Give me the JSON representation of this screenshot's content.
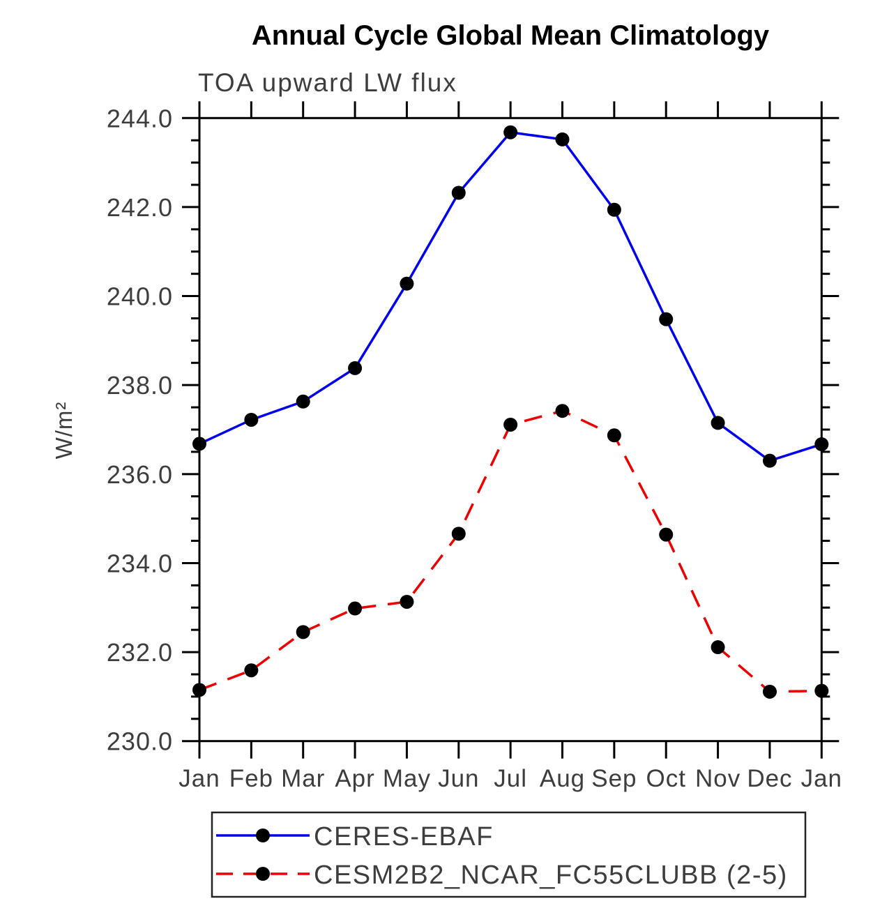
{
  "title": "Annual Cycle Global Mean Climatology",
  "subtitle": "TOA upward LW flux",
  "chart_data": {
    "type": "line",
    "categories": [
      "Jan",
      "Feb",
      "Mar",
      "Apr",
      "May",
      "Jun",
      "Jul",
      "Aug",
      "Sep",
      "Oct",
      "Nov",
      "Dec",
      "Jan"
    ],
    "series": [
      {
        "name": "CERES-EBAF",
        "color": "#0000ee",
        "line_style": "solid",
        "marker": "filled-circle",
        "marker_color": "#000000",
        "values": [
          236.68,
          237.22,
          237.63,
          238.38,
          240.28,
          242.32,
          243.68,
          243.52,
          241.94,
          239.48,
          237.15,
          236.3,
          236.67
        ]
      },
      {
        "name": "CESM2B2_NCAR_FC55CLUBB (2-5)",
        "color": "#ee0000",
        "line_style": "dashed",
        "marker": "filled-circle",
        "marker_color": "#000000",
        "values": [
          231.15,
          231.59,
          232.45,
          232.98,
          233.13,
          234.66,
          237.11,
          237.42,
          236.87,
          234.64,
          232.11,
          231.11,
          231.13
        ]
      }
    ],
    "xlabel": "",
    "ylabel": "W/m²",
    "ylim": [
      230.0,
      244.0
    ],
    "y_major_step": 2.0,
    "y_minor_step": 0.5,
    "y_tick_labels": [
      "230.0",
      "232.0",
      "234.0",
      "236.0",
      "238.0",
      "240.0",
      "242.0",
      "244.0"
    ],
    "grid": false,
    "legend_position": "bottom-center",
    "legend_border": true,
    "axis_color": "#000000"
  }
}
